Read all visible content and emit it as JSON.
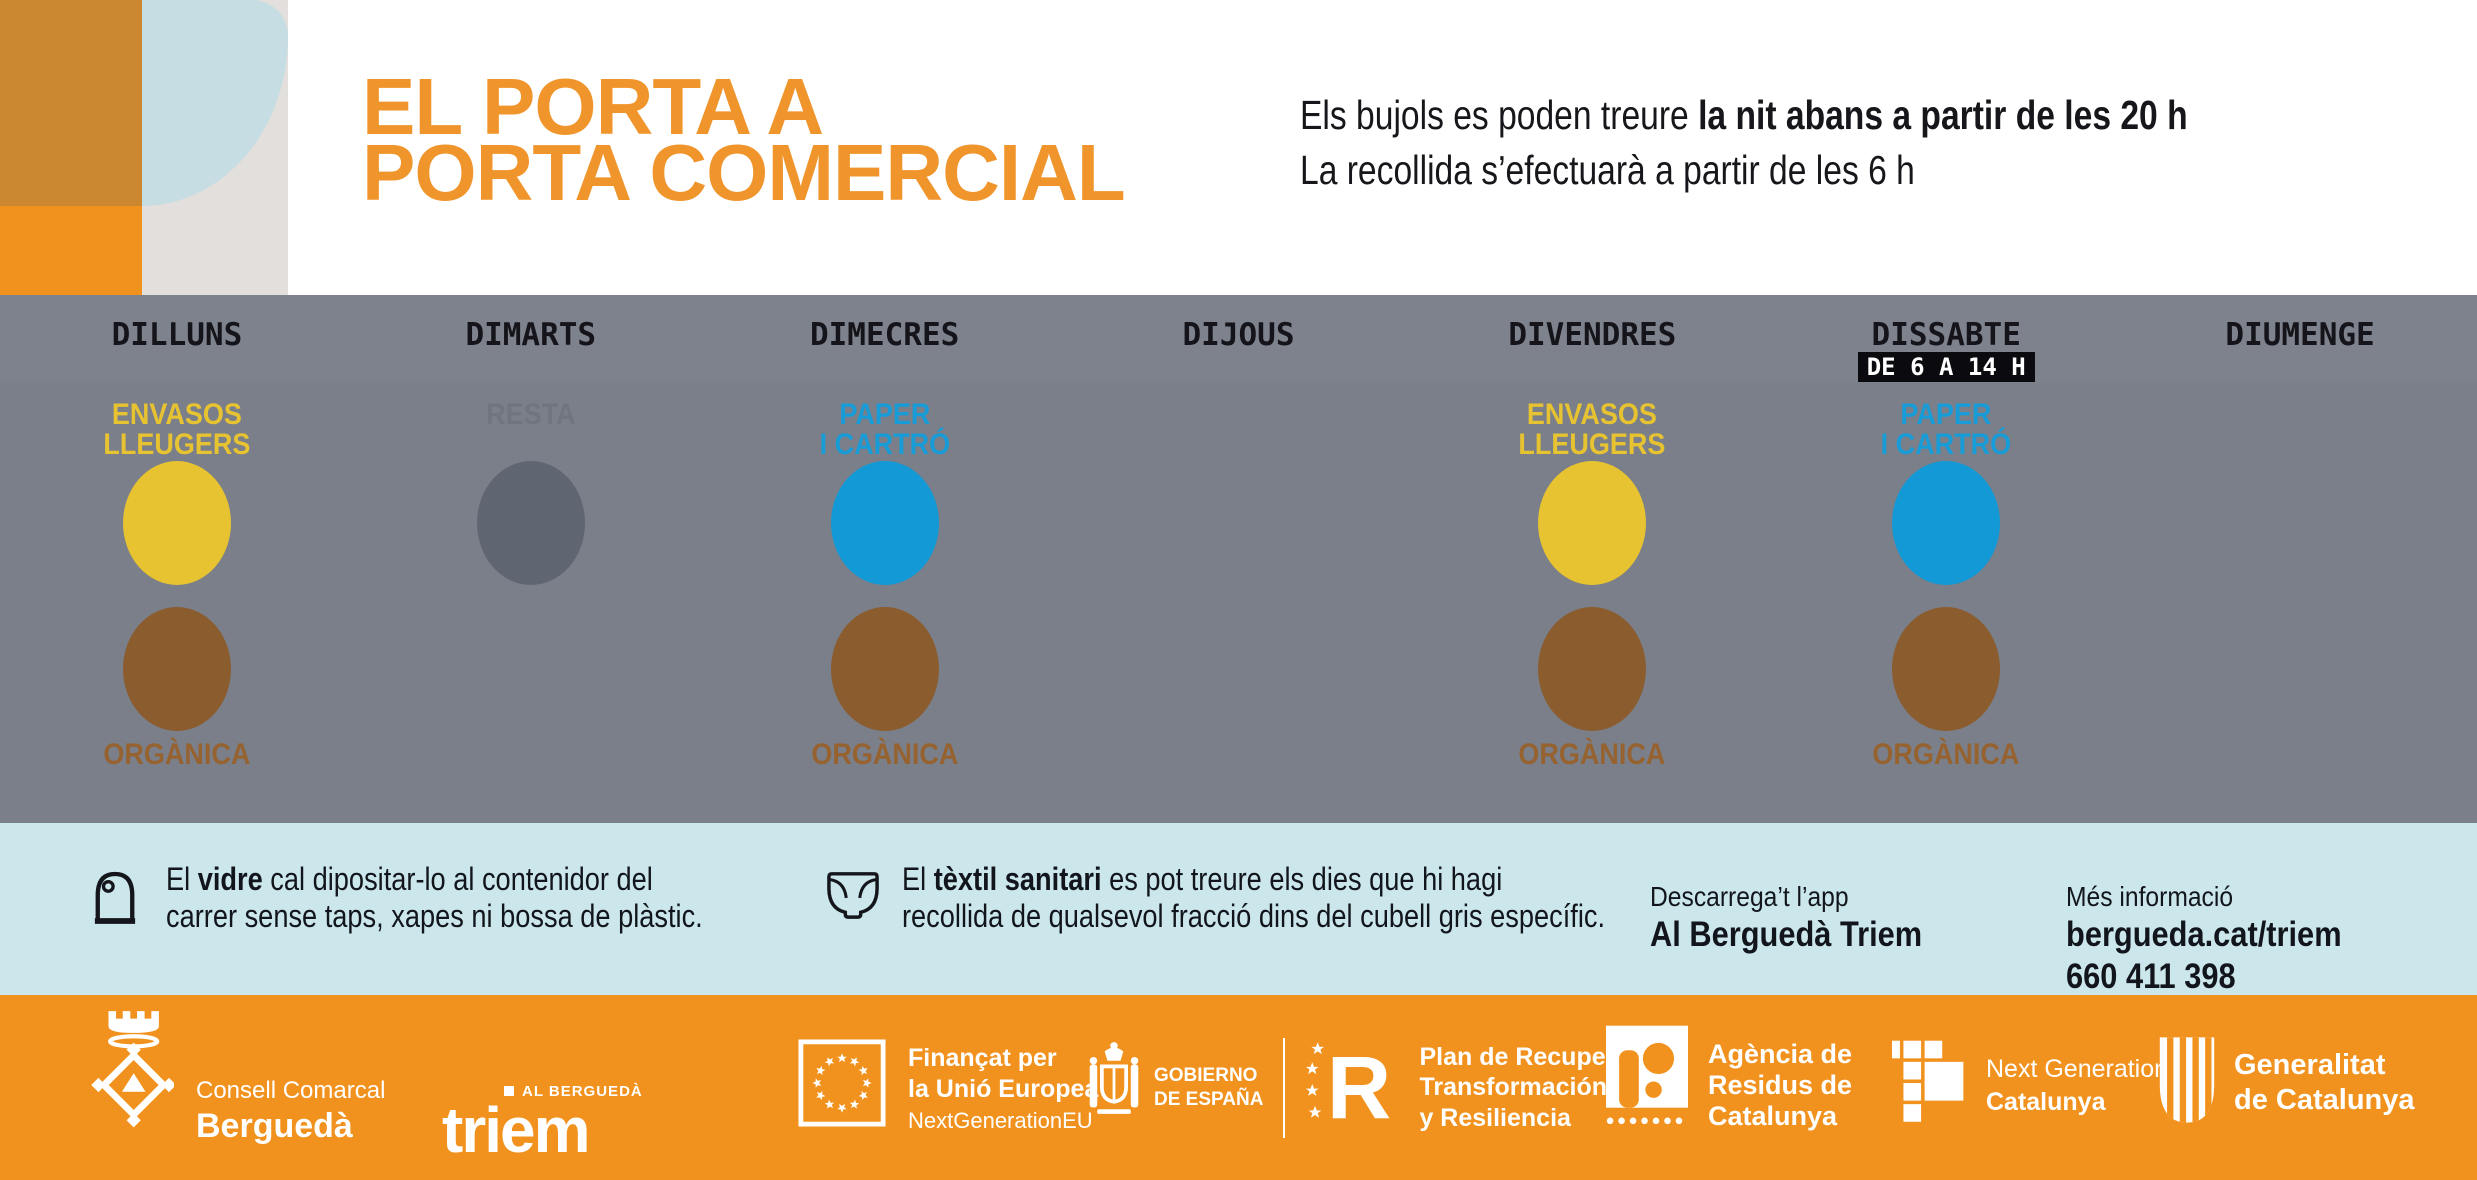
{
  "colors": {
    "accent_orange": "#F2921E",
    "deco_ochre": "#CB8831",
    "deco_gray": "#E3DFDC",
    "deco_blue": "#C5DDE3",
    "title_orange": "#F0952C",
    "band_gray": "#7A7F89",
    "notes_blue": "#CBE7EB",
    "ink": "#14161C",
    "fractions": {
      "envasos": {
        "circle": "#E7C331",
        "label": "#E7C331"
      },
      "organica": {
        "circle": "#8B5C2D",
        "label": "#96622F"
      },
      "paper": {
        "circle": "#1399D6",
        "label": "#189CD8"
      },
      "resta": {
        "circle": "#5F6671",
        "label": "#70767F"
      }
    }
  },
  "header": {
    "title_line1": "EL PORTA A",
    "title_line2": "PORTA COMERCIAL",
    "notice_normal": "Els bujols es poden treure ",
    "notice_bold": "la nit abans a partir de les 20 h",
    "notice_line2": "La recollida s’efectuarà a partir de les 6 h"
  },
  "schedule": {
    "days": [
      {
        "label": "DILLUNS",
        "badge": "",
        "top": {
          "key": "envasos",
          "name": "ENVASOS\nLLEUGERS"
        },
        "bottom": {
          "key": "organica",
          "name": "ORGÀNICA"
        }
      },
      {
        "label": "DIMARTS",
        "badge": "",
        "top": {
          "key": "resta",
          "name": "RESTA"
        },
        "bottom": null
      },
      {
        "label": "DIMECRES",
        "badge": "",
        "top": {
          "key": "paper",
          "name": "PAPER\nI CARTRÓ"
        },
        "bottom": {
          "key": "organica",
          "name": "ORGÀNICA"
        }
      },
      {
        "label": "DIJOUS",
        "badge": "",
        "top": null,
        "bottom": null
      },
      {
        "label": "DIVENDRES",
        "badge": "",
        "top": {
          "key": "envasos",
          "name": "ENVASOS\nLLEUGERS"
        },
        "bottom": {
          "key": "organica",
          "name": "ORGÀNICA"
        }
      },
      {
        "label": "DISSABTE",
        "badge": "DE 6 A 14 H",
        "top": {
          "key": "paper",
          "name": "PAPER\nI CARTRÓ"
        },
        "bottom": {
          "key": "organica",
          "name": "ORGÀNICA"
        }
      },
      {
        "label": "DIUMENGE",
        "badge": "",
        "top": null,
        "bottom": null
      }
    ]
  },
  "notes": [
    {
      "icon": "glass-container-icon",
      "pre": "El ",
      "bold": "vidre",
      "post": " cal dipositar-lo al contenidor del carrer sense taps, xapes ni bossa de plàstic."
    },
    {
      "icon": "diaper-icon",
      "pre": "El ",
      "bold": "tèxtil sanitari",
      "post": " es pot treure els dies que hi hagi recollida de qualsevol fracció dins del cubell gris específic."
    }
  ],
  "app": {
    "label": "Descarrega’t l’app",
    "name": "Al Berguedà Triem"
  },
  "info": {
    "label": "Més informació",
    "url": "bergueda.cat/triem",
    "phone": "660 411 398"
  },
  "footer": {
    "consell": {
      "line1": "Consell Comarcal",
      "line2": "Berguedà"
    },
    "triem": {
      "small": "AL BERGUEDÀ",
      "big": "triem"
    },
    "eu": {
      "line1": "Finançat per",
      "line2": "la Unió Europea",
      "line3": "NextGenerationEU"
    },
    "gobierno": {
      "line1": "GOBIERNO",
      "line2": "DE ESPAÑA"
    },
    "plan": {
      "r": "R",
      "line1": "Plan de Recuperación,",
      "line2": "Transformación",
      "line3": "y Resiliencia"
    },
    "arc": {
      "line1": "Agència de",
      "line2": "Residus de",
      "line3": "Catalunya"
    },
    "ngc": {
      "line1": "Next Generation",
      "line2": "Catalunya"
    },
    "generalitat": {
      "line1": "Generalitat",
      "line2": "de Catalunya"
    }
  }
}
